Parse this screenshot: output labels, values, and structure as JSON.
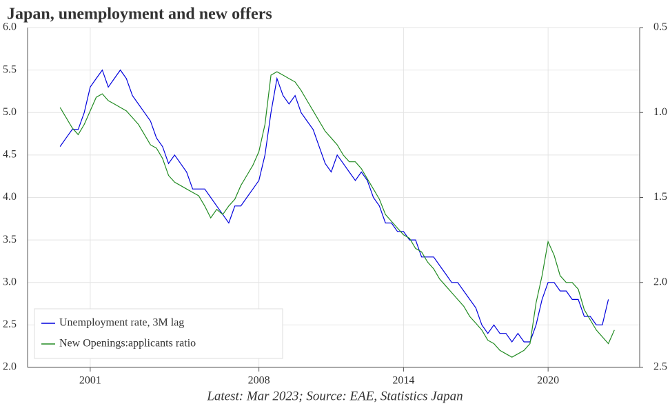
{
  "chart_data": {
    "type": "line",
    "title": "Japan, unemployment and new offers",
    "caption": "Latest: Mar 2023; Source: EAE, Statistics Japan",
    "x": [
      1999.75,
      2000,
      2000.25,
      2000.5,
      2000.75,
      2001,
      2001.25,
      2001.5,
      2001.75,
      2002,
      2002.25,
      2002.5,
      2002.75,
      2003,
      2003.25,
      2003.5,
      2003.75,
      2004,
      2004.25,
      2004.5,
      2004.75,
      2005,
      2005.25,
      2005.5,
      2005.75,
      2006,
      2006.25,
      2006.5,
      2006.75,
      2007,
      2007.25,
      2007.5,
      2007.75,
      2008,
      2008.25,
      2008.5,
      2008.75,
      2009,
      2009.25,
      2009.5,
      2009.75,
      2010,
      2010.25,
      2010.5,
      2010.75,
      2011,
      2011.25,
      2011.5,
      2011.75,
      2012,
      2012.25,
      2012.5,
      2012.75,
      2013,
      2013.25,
      2013.5,
      2013.75,
      2014,
      2014.25,
      2014.5,
      2014.75,
      2015,
      2015.25,
      2015.5,
      2015.75,
      2016,
      2016.25,
      2016.5,
      2016.75,
      2017,
      2017.25,
      2017.5,
      2017.75,
      2018,
      2018.25,
      2018.5,
      2018.75,
      2019,
      2019.25,
      2019.5,
      2019.75,
      2020,
      2020.25,
      2020.5,
      2020.75,
      2021,
      2021.25,
      2021.5,
      2021.75,
      2022,
      2022.25,
      2022.5,
      2022.75
    ],
    "series": [
      {
        "name": "Unemployment rate, 3M lag",
        "color": "#0000dd",
        "values": [
          4.6,
          4.7,
          4.8,
          4.8,
          5.0,
          5.3,
          5.4,
          5.5,
          5.3,
          5.4,
          5.5,
          5.4,
          5.2,
          5.1,
          5.0,
          4.9,
          4.7,
          4.6,
          4.4,
          4.5,
          4.4,
          4.3,
          4.1,
          4.1,
          4.1,
          4.0,
          3.9,
          3.8,
          3.7,
          3.9,
          3.9,
          4.0,
          4.1,
          4.2,
          4.5,
          5.0,
          5.4,
          5.2,
          5.1,
          5.2,
          5.0,
          4.9,
          4.8,
          4.6,
          4.4,
          4.3,
          4.5,
          4.4,
          4.3,
          4.2,
          4.3,
          4.2,
          4.0,
          3.9,
          3.7,
          3.7,
          3.6,
          3.6,
          3.5,
          3.5,
          3.3,
          3.3,
          3.3,
          3.2,
          3.1,
          3.0,
          3.0,
          2.9,
          2.8,
          2.7,
          2.5,
          2.4,
          2.5,
          2.4,
          2.4,
          2.3,
          2.4,
          2.3,
          2.3,
          2.5,
          2.8,
          3.0,
          3.0,
          2.9,
          2.9,
          2.8,
          2.8,
          2.6,
          2.6,
          2.5,
          2.5,
          2.8,
          null
        ]
      },
      {
        "name": "New Openings:applicants ratio",
        "color": "#228b22",
        "axis": "y2",
        "values": [
          0.97,
          1.03,
          1.09,
          1.13,
          1.07,
          0.99,
          0.91,
          0.89,
          0.93,
          0.95,
          0.97,
          0.99,
          1.03,
          1.07,
          1.13,
          1.19,
          1.21,
          1.27,
          1.37,
          1.41,
          1.43,
          1.45,
          1.47,
          1.49,
          1.55,
          1.62,
          1.57,
          1.6,
          1.55,
          1.51,
          1.43,
          1.37,
          1.31,
          1.23,
          1.07,
          0.78,
          0.76,
          0.78,
          0.8,
          0.82,
          0.87,
          0.93,
          0.99,
          1.05,
          1.11,
          1.15,
          1.19,
          1.25,
          1.29,
          1.29,
          1.33,
          1.39,
          1.45,
          1.51,
          1.6,
          1.64,
          1.68,
          1.72,
          1.74,
          1.8,
          1.82,
          1.88,
          1.92,
          1.98,
          2.02,
          2.06,
          2.1,
          2.14,
          2.2,
          2.24,
          2.28,
          2.34,
          2.36,
          2.4,
          2.42,
          2.44,
          2.42,
          2.4,
          2.36,
          2.12,
          1.96,
          1.76,
          1.84,
          1.96,
          2.0,
          2.0,
          2.04,
          2.16,
          2.22,
          2.28,
          2.32,
          2.36,
          2.28
        ]
      }
    ],
    "xlim": [
      1998.4,
      2023.8
    ],
    "xticks": [
      2001,
      2008,
      2014,
      2020
    ],
    "ylim": [
      2.0,
      6.0
    ],
    "yticks": [
      {
        "value": 2,
        "label": "2.0"
      },
      2.5,
      {
        "value": 3,
        "label": "3.0"
      },
      3.5,
      {
        "value": 4,
        "label": "4.0"
      },
      4.5,
      {
        "value": 5,
        "label": "5.0"
      },
      5.5,
      {
        "value": 6,
        "label": "6.0"
      }
    ],
    "y2lim": [
      0.5,
      2.5
    ],
    "y2ticks": [
      0.5,
      {
        "value": 1,
        "label": "1.0"
      },
      1.5,
      {
        "value": 2,
        "label": "2.0"
      },
      2.5
    ],
    "y2_inverted": true,
    "grid": true,
    "legend": "lower-left"
  }
}
